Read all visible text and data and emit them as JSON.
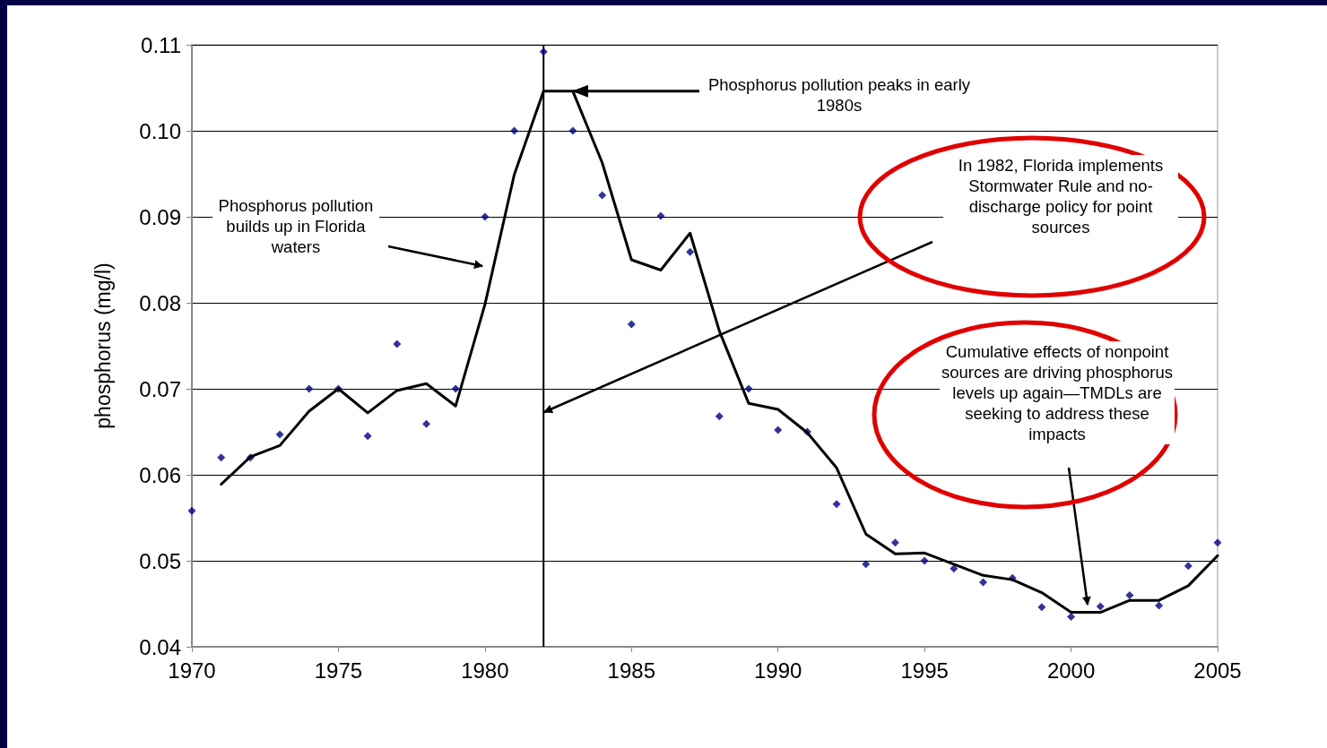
{
  "chart_data": {
    "type": "scatter",
    "ylabel": "phosphorus (mg/l)",
    "xlim": [
      1970,
      2005
    ],
    "xticks": [
      1970,
      1975,
      1980,
      1985,
      1990,
      1995,
      2000,
      2005
    ],
    "ylim": [
      0.04,
      0.11
    ],
    "yticks": [
      {
        "value": 0.04,
        "label": "0.04"
      },
      {
        "value": 0.05,
        "label": "0.05"
      },
      {
        "value": 0.06,
        "label": "0.06"
      },
      {
        "value": 0.07,
        "label": "0.07"
      },
      {
        "value": 0.08,
        "label": "0.08"
      },
      {
        "value": 0.09,
        "label": "0.09"
      },
      {
        "value": 0.1,
        "label": "0.10"
      },
      {
        "value": 0.11,
        "label": "0.11"
      }
    ],
    "grid": "y",
    "series": [
      {
        "color": "#000080",
        "marker": "diamond",
        "x": [
          1970,
          1971,
          1972,
          1973,
          1974,
          1975,
          1976,
          1977,
          1978,
          1979,
          1980,
          1981,
          1982,
          1983,
          1984,
          1985,
          1986,
          1987,
          1988,
          1989,
          1990,
          1991,
          1992,
          1993,
          1994,
          1995,
          1996,
          1997,
          1998,
          1999,
          2000,
          2001,
          2002,
          2003,
          2004,
          2005
        ],
        "values": [
          0.0558,
          0.062,
          0.062,
          0.0647,
          0.07,
          0.07,
          0.0645,
          0.0752,
          0.0659,
          0.07,
          0.09,
          0.1,
          0.1092,
          0.1,
          0.0925,
          0.0775,
          0.0901,
          0.0859,
          0.0668,
          0.07,
          0.0652,
          0.065,
          0.0566,
          0.0496,
          0.0521,
          0.05,
          0.0491,
          0.0475,
          0.048,
          0.0446,
          0.0435,
          0.0447,
          0.046,
          0.0448,
          0.0494,
          0.0521
        ]
      },
      {
        "type": "line",
        "color": "#000000",
        "marker": "none",
        "line_style": "solid",
        "x": [
          1971,
          1972,
          1973,
          1974,
          1975,
          1976,
          1977,
          1978,
          1979,
          1980,
          1981,
          1982,
          1983,
          1984,
          1985,
          1986,
          1987,
          1988,
          1989,
          1990,
          1991,
          1992,
          1993,
          1994,
          1995,
          1996,
          1997,
          1998,
          1999,
          2000,
          2001,
          2002,
          2003,
          2004,
          2005
        ],
        "values": [
          0.0589,
          0.0621,
          0.0634,
          0.0674,
          0.07,
          0.0672,
          0.0698,
          0.0706,
          0.068,
          0.0798,
          0.0949,
          0.1046,
          0.1046,
          0.0963,
          0.085,
          0.0838,
          0.0881,
          0.0767,
          0.0683,
          0.0676,
          0.0649,
          0.0608,
          0.0531,
          0.0508,
          0.0509,
          0.0496,
          0.0483,
          0.0478,
          0.0463,
          0.044,
          0.044,
          0.0454,
          0.0454,
          0.0471,
          0.0506
        ]
      }
    ],
    "ref_lines": [
      {
        "axis": "x",
        "value": 1982,
        "color": "#000000",
        "line_style": "solid"
      }
    ],
    "annotations": [
      {
        "text": "Phosphorus pollution peaks in early 1980s",
        "x": 1983,
        "y": 0.1046
      },
      "Phosphorus pollution builds up in Florida waters",
      "In 1982, Florida implements Stormwater Rule and  no-discharge policy for  point sources",
      "Cumulative effects of nonpoint sources are driving phosphorus levels up again—TMDLs are seeking to address these impacts"
    ]
  }
}
